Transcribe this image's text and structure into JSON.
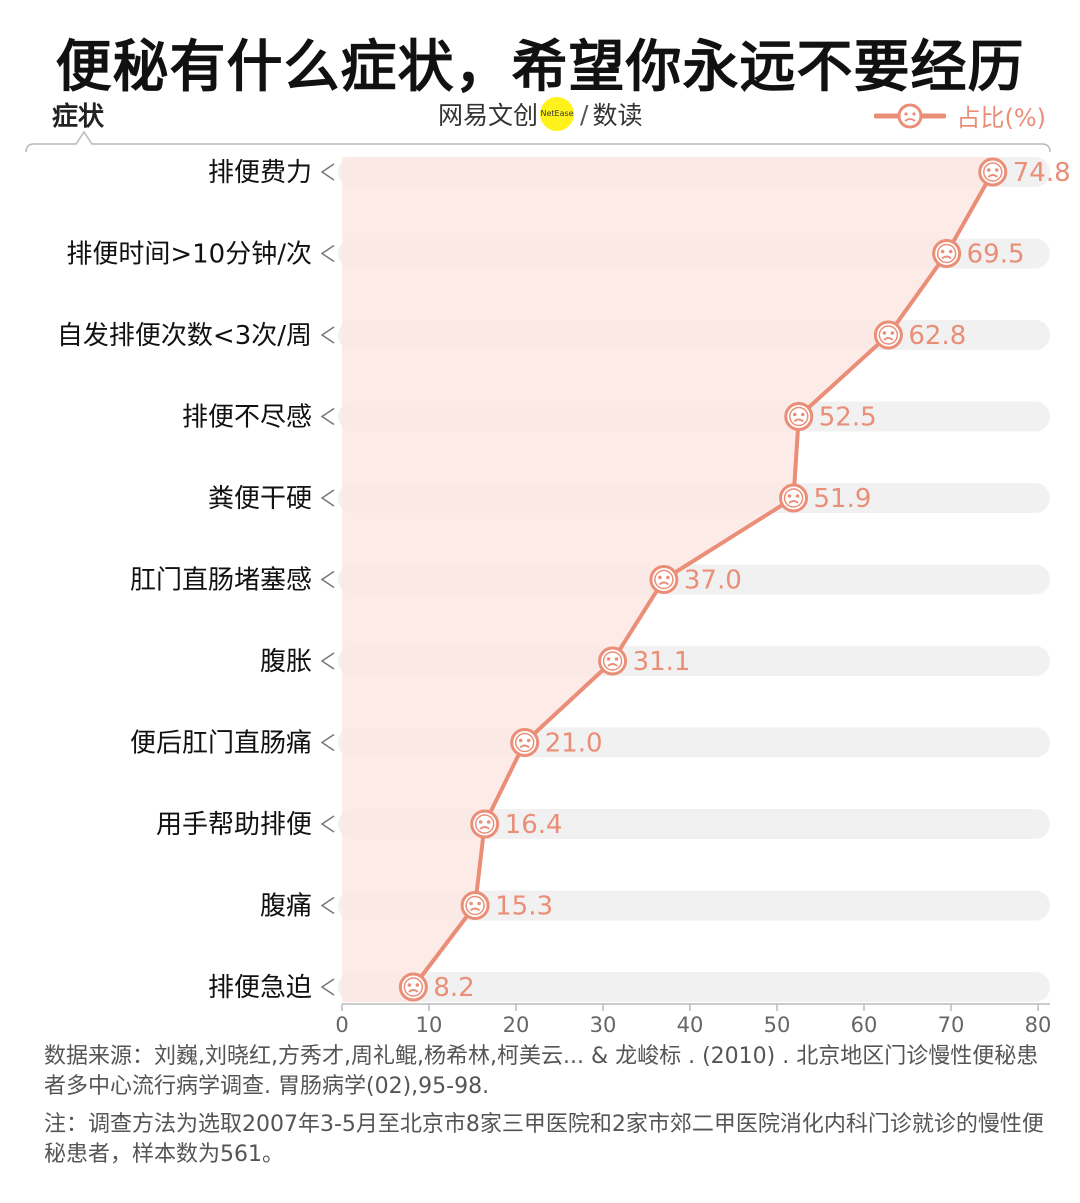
{
  "title": "便秘有什么症状，希望你永远不要经历",
  "y_header": "症状",
  "brand": {
    "left": "网易文创",
    "logo": "NetEase",
    "slash": "/",
    "right": "数读"
  },
  "legend_label": "占比(%)",
  "colors": {
    "accent": "#ea8e78",
    "area": "#fce8e3",
    "track": "#f1f1f1"
  },
  "chart_data": {
    "type": "line",
    "orientation": "horizontal",
    "categories": [
      "排便费力",
      "排便时间>10分钟/次",
      "自发排便次数<3次/周",
      "排便不尽感",
      "粪便干硬",
      "肛门直肠堵塞感",
      "腹胀",
      "便后肛门直肠痛",
      "用手帮助排便",
      "腹痛",
      "排便急迫"
    ],
    "series": [
      {
        "name": "占比(%)",
        "values": [
          74.8,
          69.5,
          62.8,
          52.5,
          51.9,
          37.0,
          31.1,
          21.0,
          16.4,
          15.3,
          8.2
        ]
      }
    ],
    "value_labels": [
      "74.8",
      "69.5",
      "62.8",
      "52.5",
      "51.9",
      "37.0",
      "31.1",
      "21.0",
      "16.4",
      "15.3",
      "8.2"
    ],
    "xlim": [
      0,
      80
    ],
    "xticks": [
      0,
      10,
      20,
      30,
      40,
      50,
      60,
      70,
      80
    ],
    "ylabel": "症状",
    "grid": false,
    "legend": "top-right"
  },
  "notes": {
    "source": "数据来源：刘巍,刘晓红,方秀才,周礼鲲,杨希林,柯美云... & 龙峻标 . (2010) . 北京地区门诊慢性便秘患者多中心流行病学调查. 胃肠病学(02),95-98.",
    "method": "注：调查方法为选取2007年3-5月至北京市8家三甲医院和2家市郊二甲医院消化内科门诊就诊的慢性便秘患者，样本数为561。"
  }
}
